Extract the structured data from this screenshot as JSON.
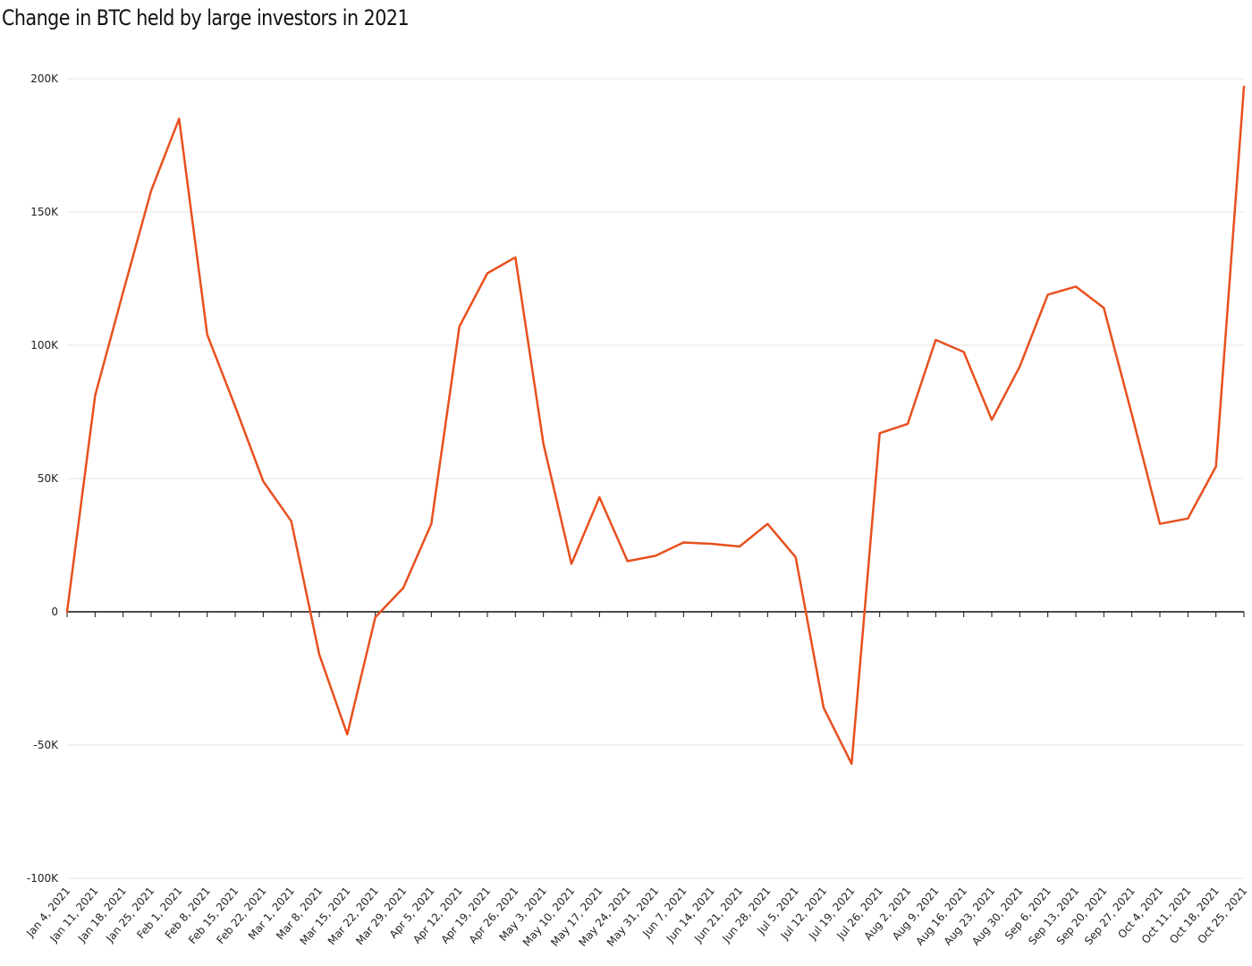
{
  "title": "Change in BTC held by large investors in 2021",
  "chart_data": {
    "type": "line",
    "title": "Change in BTC held by large investors in 2021",
    "xlabel": "",
    "ylabel": "",
    "ylim": [
      -100000,
      200000
    ],
    "yticks": [
      {
        "value": 200000,
        "label": "200K"
      },
      {
        "value": 150000,
        "label": "150K"
      },
      {
        "value": 100000,
        "label": "100K"
      },
      {
        "value": 50000,
        "label": "50K"
      },
      {
        "value": 0,
        "label": "0"
      },
      {
        "value": -50000,
        "label": "-50K"
      },
      {
        "value": -100000,
        "label": "-100K"
      }
    ],
    "grid": true,
    "line_color": "#e8501e",
    "categories": [
      "Jan 4, 2021",
      "Jan 11, 2021",
      "Jan 18, 2021",
      "Jan 25, 2021",
      "Feb 1, 2021",
      "Feb 8, 2021",
      "Feb 15, 2021",
      "Feb 22, 2021",
      "Mar 1, 2021",
      "Mar 8, 2021",
      "Mar 15, 2021",
      "Mar 22, 2021",
      "Mar 29, 2021",
      "Apr 5, 2021",
      "Apr 12, 2021",
      "Apr 19, 2021",
      "Apr 26, 2021",
      "May 3, 2021",
      "May 10, 2021",
      "May 17, 2021",
      "May 24, 2021",
      "May 31, 2021",
      "Jun 7, 2021",
      "Jun 14, 2021",
      "Jun 21, 2021",
      "Jun 28, 2021",
      "Jul 5, 2021",
      "Jul 12, 2021",
      "Jul 19, 2021",
      "Jul 26, 2021",
      "Aug 2, 2021",
      "Aug 9, 2021",
      "Aug 16, 2021",
      "Aug 23, 2021",
      "Aug 30, 2021",
      "Sep 6, 2021",
      "Sep 13, 2021",
      "Sep 20, 2021",
      "Sep 27, 2021",
      "Oct 4, 2021",
      "Oct 11, 2021",
      "Oct 18, 2021",
      "Oct 25, 2021"
    ],
    "values": [
      0,
      81000,
      120000,
      158000,
      185000,
      104000,
      77000,
      49000,
      34000,
      -16000,
      -46000,
      -2000,
      9000,
      33000,
      107000,
      127000,
      133000,
      63000,
      18000,
      43000,
      19000,
      21000,
      26000,
      25500,
      24500,
      33000,
      20500,
      -36000,
      -57000,
      67000,
      70500,
      102000,
      97500,
      72000,
      92000,
      119000,
      122000,
      114000,
      74000,
      33000,
      35000,
      54500,
      197000
    ]
  }
}
